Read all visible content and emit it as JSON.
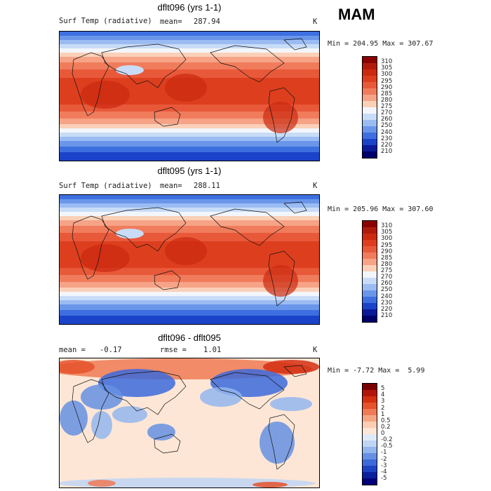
{
  "season": "MAM",
  "chart_data": [
    {
      "type": "heatmap",
      "title": "dflt096 (yrs 1-1)",
      "variable": "Surf Temp (radiative)",
      "mean_label": "mean=",
      "mean_value": "287.94",
      "units": "K",
      "min_max_text": "Min = 204.95 Max = 307.67",
      "min": 204.95,
      "max": 307.67,
      "colorbar_levels": [
        "310",
        "305",
        "300",
        "295",
        "290",
        "285",
        "280",
        "275",
        "270",
        "260",
        "250",
        "240",
        "230",
        "220",
        "210"
      ]
    },
    {
      "type": "heatmap",
      "title": "dflt095 (yrs 1-1)",
      "variable": "Surf Temp (radiative)",
      "mean_label": "mean=",
      "mean_value": "288.11",
      "units": "K",
      "min_max_text": "Min = 205.96 Max = 307.60",
      "min": 205.96,
      "max": 307.6,
      "colorbar_levels": [
        "310",
        "305",
        "300",
        "295",
        "290",
        "285",
        "280",
        "275",
        "270",
        "260",
        "250",
        "240",
        "230",
        "220",
        "210"
      ]
    },
    {
      "type": "heatmap",
      "title": "dflt096 - dflt095",
      "mean_label": "mean =",
      "mean_value": "-0.17",
      "rmse_label": "rmse =",
      "rmse_value": "1.01",
      "units": "K",
      "min_max_text": "Min = -7.72 Max =  5.99",
      "min": -7.72,
      "max": 5.99,
      "colorbar_levels": [
        "5",
        "4",
        "3",
        "2",
        "1",
        "0.5",
        "0.2",
        "0",
        "-0.2",
        "-0.5",
        "-1",
        "-2",
        "-3",
        "-4",
        "-5"
      ]
    }
  ],
  "colors": {
    "temp_scale": [
      "#8b0000",
      "#b01a0a",
      "#cc2a10",
      "#dd3f1e",
      "#e8593a",
      "#f07c5c",
      "#f6a387",
      "#fbd0b8",
      "#f2f6fb",
      "#c9dcf7",
      "#9bbcf2",
      "#6a96ea",
      "#3e6fe0",
      "#1b43c9",
      "#0a1a98",
      "#00006b"
    ],
    "diff_scale": [
      "#7a0000",
      "#b31408",
      "#d42e12",
      "#e5522c",
      "#ef7a55",
      "#f6a583",
      "#fccdb3",
      "#fde6d6",
      "#dfeaf9",
      "#bfd5f4",
      "#93b6ee",
      "#6590e3",
      "#3c6adb",
      "#1e42c4",
      "#0a1f9e",
      "#00007a"
    ]
  }
}
